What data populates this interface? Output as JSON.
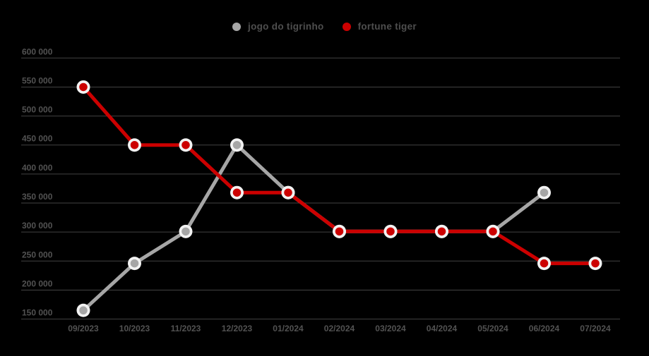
{
  "legend": {
    "items": [
      {
        "label": "jogo do tigrinho",
        "color": "#a6a6a6",
        "icon": "circle-dot"
      },
      {
        "label": "fortune tiger",
        "color": "#cc0000",
        "icon": "circle-dot"
      }
    ]
  },
  "colors": {
    "background": "#000000",
    "gridline": "#424242",
    "tick_text": "#525252",
    "legend_text": "#4e4e4e",
    "marker_ring": "#f2f2f2"
  },
  "chart_data": {
    "type": "line",
    "title": "",
    "xlabel": "",
    "ylabel": "",
    "grid": "horizontal",
    "legend_position": "top-center",
    "x": [
      "09/2023",
      "10/2023",
      "11/2023",
      "12/2023",
      "01/2024",
      "02/2024",
      "03/2024",
      "04/2024",
      "05/2024",
      "06/2024",
      "07/2024"
    ],
    "series": [
      {
        "name": "jogo do tigrinho",
        "color": "#a6a6a6",
        "values": [
          165000,
          246000,
          301000,
          450000,
          368000,
          301000,
          301000,
          301000,
          301000,
          368000,
          null
        ]
      },
      {
        "name": "fortune tiger",
        "color": "#cc0000",
        "values": [
          550000,
          450000,
          450000,
          368000,
          368000,
          301000,
          301000,
          301000,
          301000,
          246000,
          246000
        ]
      }
    ],
    "ylim": [
      150000,
      600000
    ],
    "yticks": [
      {
        "value": 600000,
        "label": "600 000"
      },
      {
        "value": 550000,
        "label": "550 000"
      },
      {
        "value": 500000,
        "label": "500 000"
      },
      {
        "value": 450000,
        "label": "450 000"
      },
      {
        "value": 400000,
        "label": "400 000"
      },
      {
        "value": 350000,
        "label": "350 000"
      },
      {
        "value": 300000,
        "label": "300 000"
      },
      {
        "value": 250000,
        "label": "250 000"
      },
      {
        "value": 200000,
        "label": "200 000"
      },
      {
        "value": 150000,
        "label": "150 000"
      }
    ]
  }
}
